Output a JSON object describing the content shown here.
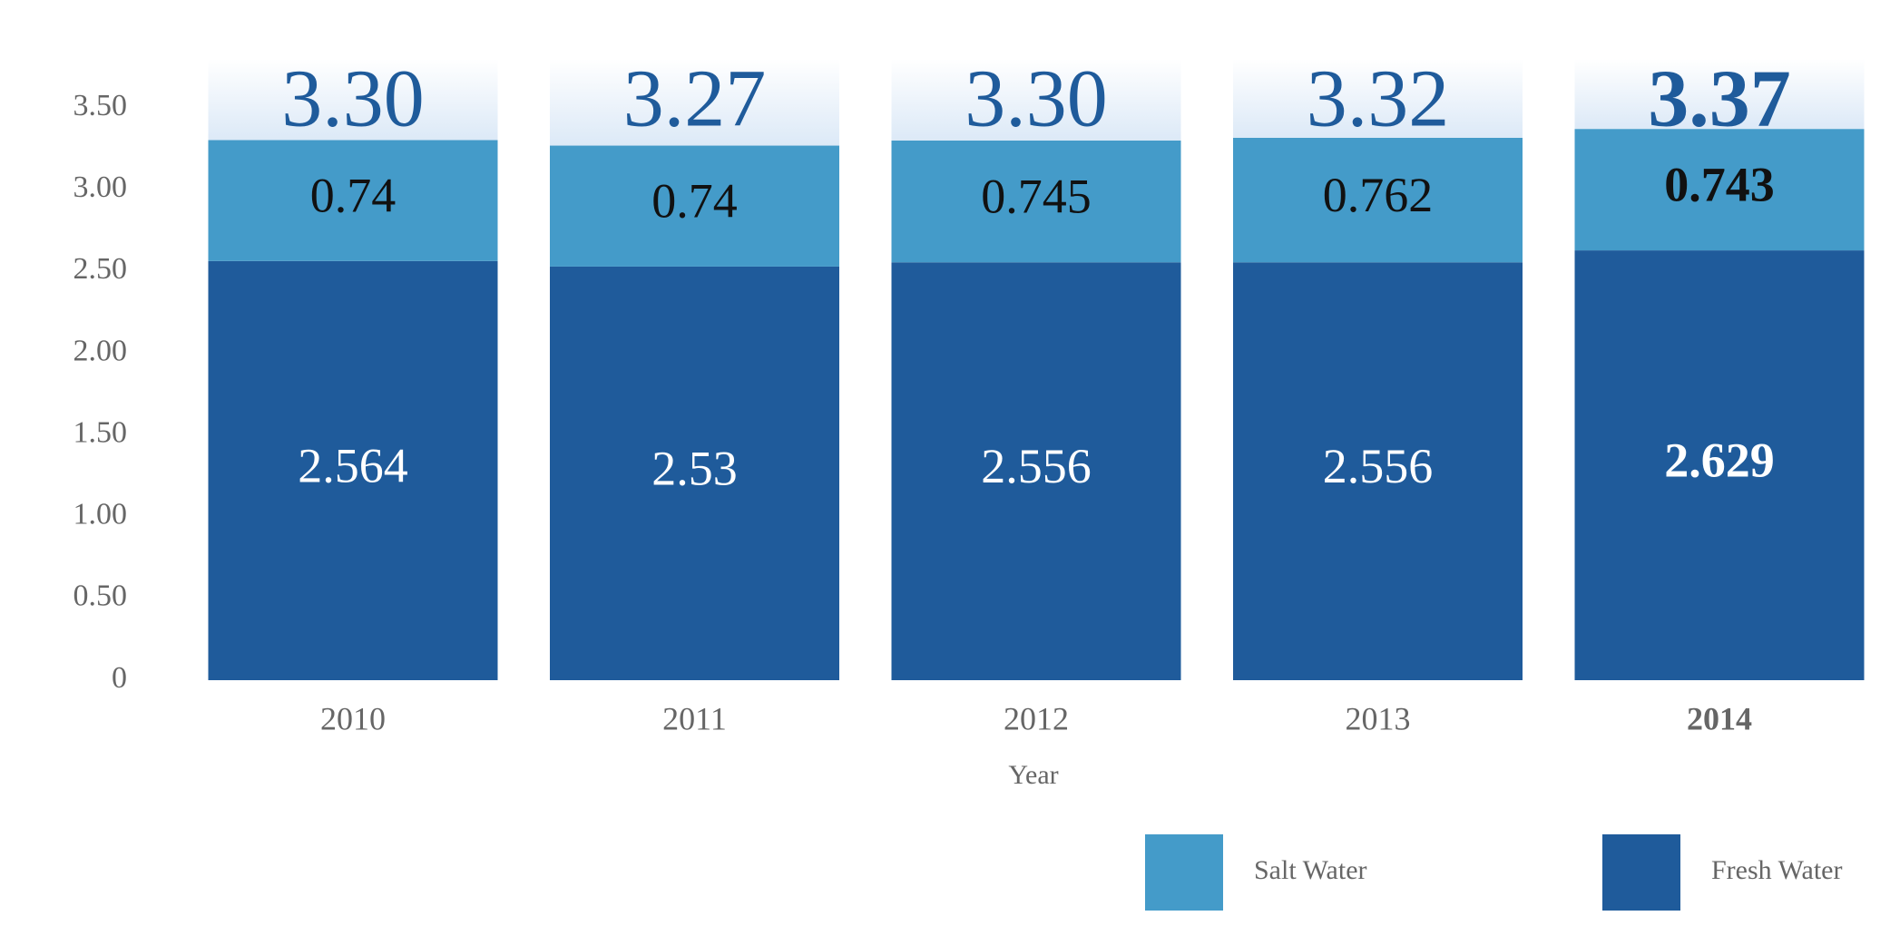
{
  "chart_data": {
    "type": "stacked-bar",
    "categories": [
      "2010",
      "2011",
      "2012",
      "2013",
      "2014"
    ],
    "series": [
      {
        "name": "Fresh Water",
        "color": "#1f5b9b",
        "values": [
          2.564,
          2.53,
          2.556,
          2.556,
          2.629
        ]
      },
      {
        "name": "Salt Water",
        "color": "#449bc9",
        "values": [
          0.74,
          0.74,
          0.745,
          0.762,
          0.743
        ]
      }
    ],
    "totals": {
      "values": [
        3.3,
        3.27,
        3.3,
        3.32,
        3.37
      ],
      "value_labels": [
        "3.30",
        "3.27",
        "3.30",
        "3.32",
        "3.37"
      ],
      "color": "#1f5b9b"
    },
    "highlight": 4,
    "x_label": "Year",
    "ylim": [
      0,
      3.8
    ],
    "yticks": [
      0,
      {
        "value": 0.5,
        "label": "0.50"
      },
      {
        "value": 1,
        "label": "1.00"
      },
      {
        "value": 1.5,
        "label": "1.50"
      },
      {
        "value": 2,
        "label": "2.00"
      },
      {
        "value": 2.5,
        "label": "2.50"
      },
      {
        "value": 3,
        "label": "3.00"
      },
      {
        "value": 3.5,
        "label": "3.50"
      }
    ],
    "grid": false
  }
}
